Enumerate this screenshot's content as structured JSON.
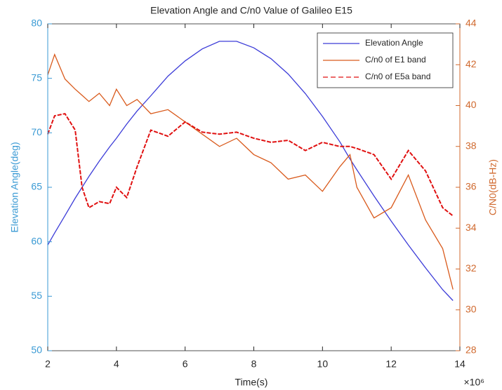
{
  "chart_data": {
    "type": "line",
    "title": "Elevation Angle and C/n0 Value of Galileo E15",
    "xlabel": "Time(s)",
    "x_multiplier": "×10⁶",
    "ylabel": "Elevation Angle(deg)",
    "y2label": "C/N0(dB-Hz)",
    "ylabel_color": "#3a9ad4",
    "y2label_color": "#d0692e",
    "x": [
      2,
      2.2,
      2.5,
      2.8,
      3,
      3.2,
      3.5,
      3.8,
      4,
      4.3,
      4.6,
      5,
      5.5,
      6,
      6.5,
      7,
      7.5,
      8,
      8.5,
      9,
      9.5,
      10,
      10.5,
      10.8,
      11,
      11.5,
      12,
      12.5,
      13,
      13.5,
      13.8
    ],
    "series": [
      {
        "name": "Elevation Angle",
        "color": "#3c3cd8",
        "axis": "y",
        "dashed": false,
        "values": [
          59.7,
          60.8,
          62.4,
          64,
          65,
          66,
          67.4,
          68.7,
          69.5,
          70.8,
          72,
          73.4,
          75.2,
          76.6,
          77.7,
          78.4,
          78.4,
          77.8,
          76.8,
          75.4,
          73.6,
          71.5,
          69.2,
          67.6,
          66.6,
          64.2,
          61.9,
          59.7,
          57.6,
          55.6,
          54.6
        ]
      },
      {
        "name": "C/n0 of E1 band",
        "color": "#d95a1c",
        "axis": "y2",
        "dashed": false,
        "values": [
          41.5,
          42.5,
          41.3,
          40.8,
          40.5,
          40.2,
          40.6,
          40,
          40.8,
          40,
          40.3,
          39.6,
          39.8,
          39.2,
          38.6,
          38,
          38.4,
          37.6,
          37.2,
          36.4,
          36.6,
          35.8,
          37,
          37.6,
          36,
          34.5,
          35,
          36.6,
          34.4,
          33,
          31
        ]
      },
      {
        "name": "C/n0 of E5a band",
        "color": "#e01010",
        "axis": "y2",
        "dashed": true,
        "values": [
          38.6,
          39.5,
          39.6,
          38.8,
          36,
          35,
          35.3,
          35.2,
          36,
          35.5,
          37,
          38.8,
          38.5,
          39.2,
          38.7,
          38.6,
          38.7,
          38.4,
          38.2,
          38.3,
          37.8,
          38.2,
          38,
          38,
          37.9,
          37.6,
          36.4,
          37.8,
          36.8,
          35,
          34.6
        ]
      }
    ],
    "xlim": [
      2,
      14
    ],
    "xticks": [
      2,
      4,
      6,
      8,
      10,
      12,
      14
    ],
    "ylim": [
      50,
      80
    ],
    "yticks": [
      50,
      55,
      60,
      65,
      70,
      75,
      80
    ],
    "y2lim": [
      28,
      44
    ],
    "y2ticks": [
      28,
      30,
      32,
      34,
      36,
      38,
      40,
      42,
      44
    ],
    "legend": "upper right"
  }
}
